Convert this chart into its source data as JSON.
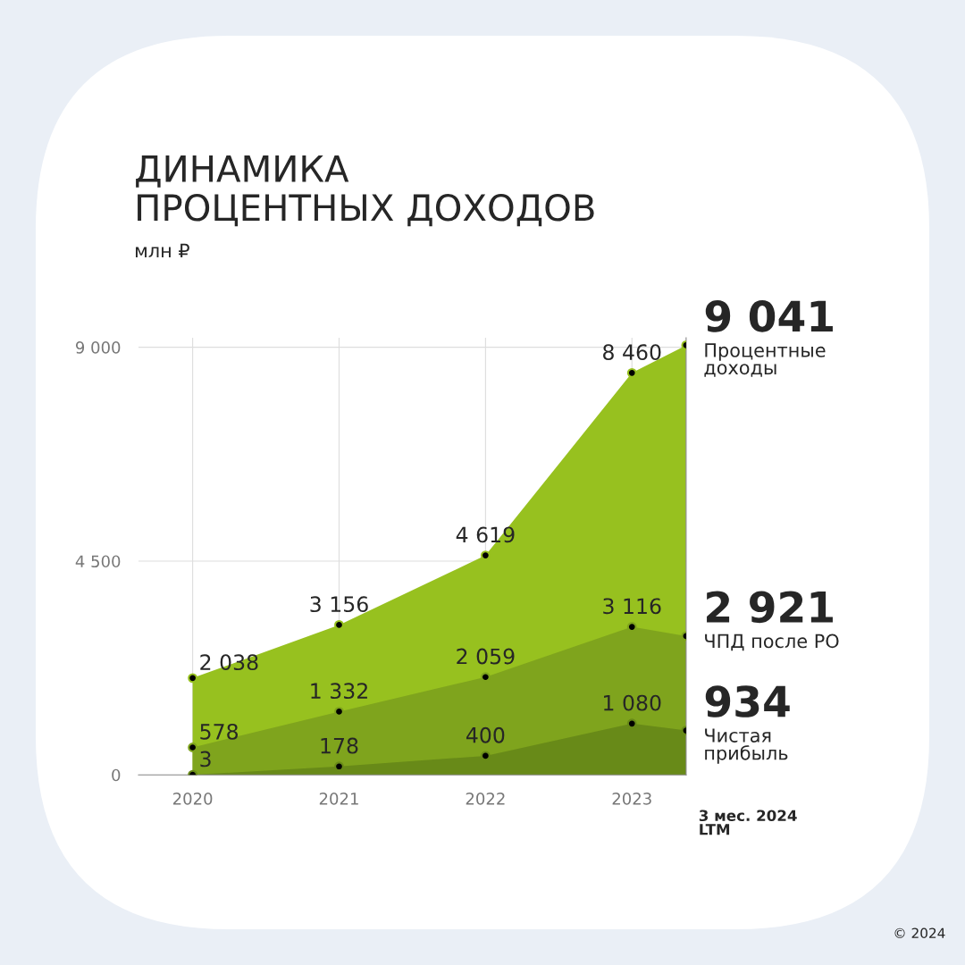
{
  "chart_data": {
    "type": "area",
    "title": "ДИНАМИКА\nПРОЦЕНТНЫХ ДОХОДОВ",
    "subtitle": "млн ₽",
    "x": [
      2020,
      2021,
      2022,
      2023,
      2023.37
    ],
    "series": [
      {
        "name": "Процентные\nдоходы",
        "color": "#97c11f",
        "values": [
          2038,
          3156,
          4619,
          8460,
          9041
        ],
        "value_labels": [
          "2 038",
          "3 156",
          "4 619",
          "8 460",
          "9 041"
        ]
      },
      {
        "name": "ЧПД после РО",
        "color": "#7fa41d",
        "values": [
          578,
          1332,
          2059,
          3116,
          2921
        ],
        "value_labels": [
          "578",
          "1 332",
          "2 059",
          "3 116",
          "2 921"
        ]
      },
      {
        "name": "Чистая\nприбыль",
        "color": "#688a18",
        "values": [
          3,
          178,
          400,
          1080,
          934
        ],
        "value_labels": [
          "3",
          "178",
          "400",
          "1 080",
          "934"
        ]
      }
    ],
    "xlim": [
      2019.63,
      2023.37
    ],
    "xticks": [
      2020,
      2021,
      2022,
      2023
    ],
    "ylim": [
      0,
      9200
    ],
    "yticks": [
      0,
      {
        "value": 4500,
        "label": "4 500"
      },
      {
        "value": 9000,
        "label": "9 000"
      }
    ],
    "grid": true,
    "legend": false,
    "marker": "circle",
    "annotations": [
      {
        "text": "3 мес. 2024\nLTM",
        "x": 2023.37,
        "y": 0
      },
      "© 2024"
    ]
  }
}
